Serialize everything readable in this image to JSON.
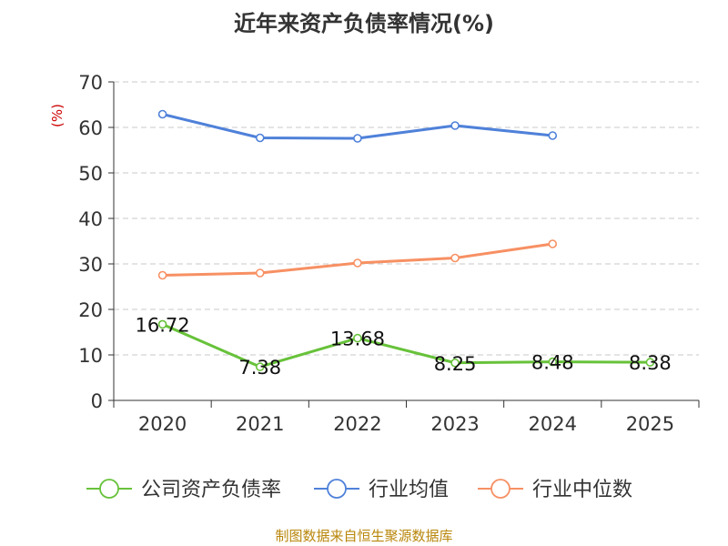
{
  "chart_data": {
    "type": "line",
    "title": "近年来资产负债率情况(%)",
    "ylabel": "(%)",
    "categories": [
      "2020",
      "2021",
      "2022",
      "2023",
      "2024",
      "2025"
    ],
    "ylim": [
      0,
      70
    ],
    "yticks": [
      0,
      10,
      20,
      30,
      40,
      50,
      60,
      70
    ],
    "grid": true,
    "legend_position": "bottom",
    "series": [
      {
        "name": "公司资产负债率",
        "color": "#67c23a",
        "values": [
          16.72,
          7.38,
          13.68,
          8.25,
          8.48,
          8.38
        ],
        "labels": [
          "16.72",
          "7.38",
          "13.68",
          "8.25",
          "8.48",
          "8.38"
        ]
      },
      {
        "name": "行业均值",
        "color": "#4f81d9",
        "values": [
          62.9,
          57.7,
          57.6,
          60.4,
          58.2,
          null
        ]
      },
      {
        "name": "行业中位数",
        "color": "#f79063",
        "values": [
          27.5,
          28.0,
          30.2,
          31.3,
          34.4,
          null
        ]
      }
    ]
  },
  "source": "制图数据来自恒生聚源数据库"
}
